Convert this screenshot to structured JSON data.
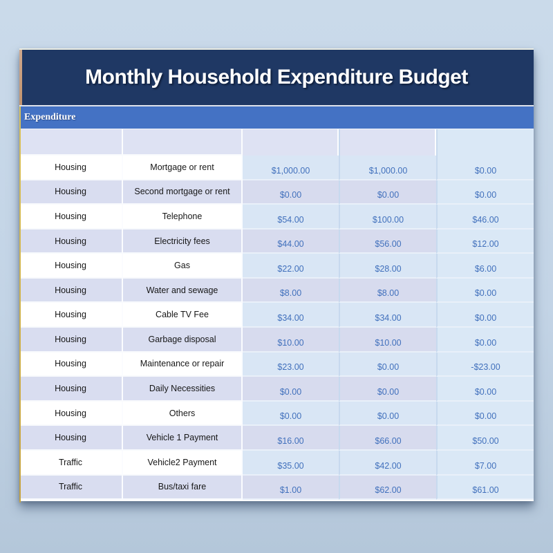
{
  "title": "Monthly Household Expenditure Budget",
  "section": {
    "label": "Expenditure"
  },
  "colors": {
    "title_band": "#1F3864",
    "section_band": "#4472C4",
    "row_lavender": "#D9DDF0",
    "money_light_blue": "#D9E6F5",
    "money_lavender": "#D7DBEE",
    "money_text": "#4170BC",
    "header_row_bg": "#DEE2F3",
    "page_background": "#C3D4E6",
    "gold_edge": "#C9A94E",
    "tan_edge": "#C49A7C"
  },
  "table": {
    "header_cells": [
      "",
      "",
      "",
      "",
      ""
    ],
    "rows": [
      {
        "category": "Housing",
        "item": "Mortgage or rent",
        "amounts": [
          "$1,000.00",
          "$1,000.00",
          "$0.00"
        ]
      },
      {
        "category": "Housing",
        "item": "Second mortgage or rent",
        "amounts": [
          "$0.00",
          "$0.00",
          "$0.00"
        ]
      },
      {
        "category": "Housing",
        "item": "Telephone",
        "amounts": [
          "$54.00",
          "$100.00",
          "$46.00"
        ]
      },
      {
        "category": "Housing",
        "item": "Electricity fees",
        "amounts": [
          "$44.00",
          "$56.00",
          "$12.00"
        ]
      },
      {
        "category": "Housing",
        "item": "Gas",
        "amounts": [
          "$22.00",
          "$28.00",
          "$6.00"
        ]
      },
      {
        "category": "Housing",
        "item": "Water and sewage",
        "amounts": [
          "$8.00",
          "$8.00",
          "$0.00"
        ]
      },
      {
        "category": "Housing",
        "item": "Cable TV Fee",
        "amounts": [
          "$34.00",
          "$34.00",
          "$0.00"
        ]
      },
      {
        "category": "Housing",
        "item": "Garbage disposal",
        "amounts": [
          "$10.00",
          "$10.00",
          "$0.00"
        ]
      },
      {
        "category": "Housing",
        "item": "Maintenance or repair",
        "amounts": [
          "$23.00",
          "$0.00",
          "-$23.00"
        ]
      },
      {
        "category": "Housing",
        "item": "Daily Necessities",
        "amounts": [
          "$0.00",
          "$0.00",
          "$0.00"
        ]
      },
      {
        "category": "Housing",
        "item": "Others",
        "amounts": [
          "$0.00",
          "$0.00",
          "$0.00"
        ]
      },
      {
        "category": "Housing",
        "item": "Vehicle 1 Payment",
        "amounts": [
          "$16.00",
          "$66.00",
          "$50.00"
        ]
      },
      {
        "category": "Traffic",
        "item": "Vehicle2 Payment",
        "amounts": [
          "$35.00",
          "$42.00",
          "$7.00"
        ]
      },
      {
        "category": "Traffic",
        "item": "Bus/taxi fare",
        "amounts": [
          "$1.00",
          "$62.00",
          "$61.00"
        ]
      }
    ]
  }
}
